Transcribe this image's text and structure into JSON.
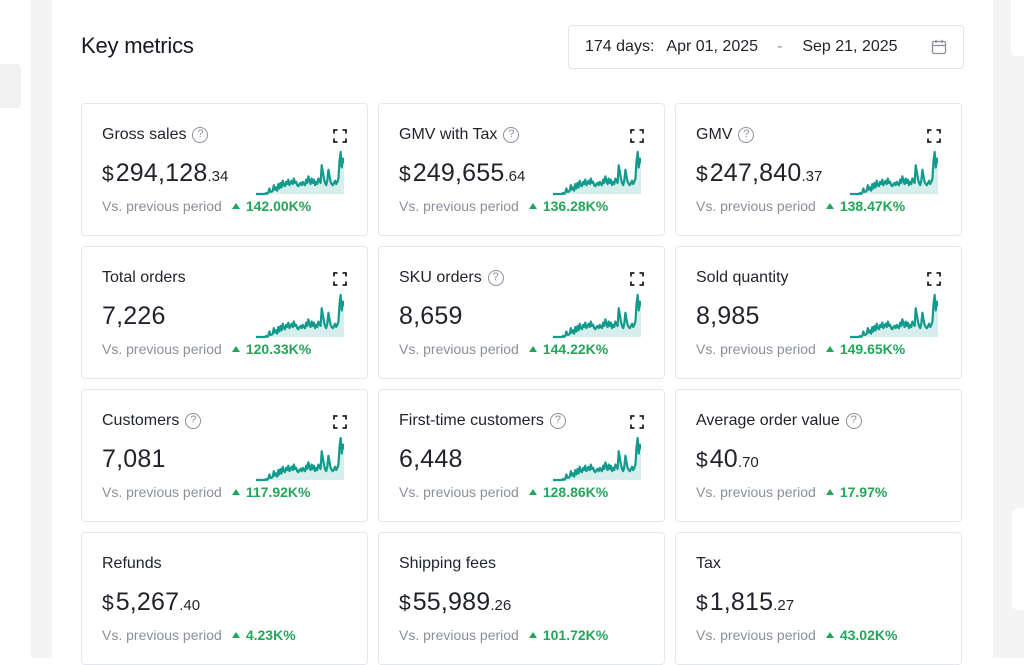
{
  "header": {
    "title": "Key metrics",
    "date_range": {
      "days_label": "174 days:",
      "start": "Apr 01, 2025",
      "separator": "-",
      "end": "Sep 21, 2025",
      "icon": "calendar-icon"
    }
  },
  "colors": {
    "accent_green": "#23a55a",
    "sparkline": "#129a8c",
    "sparkline_fill": "#d6efec"
  },
  "metrics": [
    {
      "label": "Gross sales",
      "help": true,
      "expandable": true,
      "currency": "$",
      "int": "294,128",
      "dec": ".34",
      "compare_label": "Vs. previous period",
      "change": "142.00K%",
      "trend": "up",
      "sparkline": true
    },
    {
      "label": "GMV with Tax",
      "help": true,
      "expandable": true,
      "currency": "$",
      "int": "249,655",
      "dec": ".64",
      "compare_label": "Vs. previous period",
      "change": "136.28K%",
      "trend": "up",
      "sparkline": true
    },
    {
      "label": "GMV",
      "help": true,
      "expandable": true,
      "currency": "$",
      "int": "247,840",
      "dec": ".37",
      "compare_label": "Vs. previous period",
      "change": "138.47K%",
      "trend": "up",
      "sparkline": true
    },
    {
      "label": "Total orders",
      "help": false,
      "expandable": true,
      "currency": "",
      "int": "7,226",
      "dec": "",
      "compare_label": "Vs. previous period",
      "change": "120.33K%",
      "trend": "up",
      "sparkline": true
    },
    {
      "label": "SKU orders",
      "help": true,
      "expandable": true,
      "currency": "",
      "int": "8,659",
      "dec": "",
      "compare_label": "Vs. previous period",
      "change": "144.22K%",
      "trend": "up",
      "sparkline": true
    },
    {
      "label": "Sold quantity",
      "help": false,
      "expandable": true,
      "currency": "",
      "int": "8,985",
      "dec": "",
      "compare_label": "Vs. previous period",
      "change": "149.65K%",
      "trend": "up",
      "sparkline": true
    },
    {
      "label": "Customers",
      "help": true,
      "expandable": true,
      "currency": "",
      "int": "7,081",
      "dec": "",
      "compare_label": "Vs. previous period",
      "change": "117.92K%",
      "trend": "up",
      "sparkline": true
    },
    {
      "label": "First-time customers",
      "help": true,
      "expandable": true,
      "currency": "",
      "int": "6,448",
      "dec": "",
      "compare_label": "Vs. previous period",
      "change": "128.86K%",
      "trend": "up",
      "sparkline": true
    },
    {
      "label": "Average order value",
      "help": true,
      "expandable": false,
      "currency": "$",
      "int": "40",
      "dec": ".70",
      "compare_label": "Vs. previous period",
      "change": "17.97%",
      "trend": "up",
      "sparkline": false
    },
    {
      "label": "Refunds",
      "help": false,
      "expandable": false,
      "currency": "$",
      "int": "5,267",
      "dec": ".40",
      "compare_label": "Vs. previous period",
      "change": "4.23K%",
      "trend": "up",
      "sparkline": false
    },
    {
      "label": "Shipping fees",
      "help": false,
      "expandable": false,
      "currency": "$",
      "int": "55,989",
      "dec": ".26",
      "compare_label": "Vs. previous period",
      "change": "101.72K%",
      "trend": "up",
      "sparkline": false
    },
    {
      "label": "Tax",
      "help": false,
      "expandable": false,
      "currency": "$",
      "int": "1,815",
      "dec": ".27",
      "compare_label": "Vs. previous period",
      "change": "43.02K%",
      "trend": "up",
      "sparkline": false
    }
  ],
  "sparkline_shape": [
    0,
    0,
    0,
    0,
    0,
    0,
    0,
    0,
    0,
    1,
    0,
    1,
    5,
    2,
    2,
    3,
    8,
    4,
    6,
    3,
    9,
    5,
    10,
    6,
    12,
    8,
    7,
    11,
    9,
    13,
    8,
    10,
    12,
    9,
    14,
    10,
    11,
    8,
    7,
    9,
    10,
    8,
    11,
    9,
    8,
    13,
    10,
    16,
    12,
    9,
    14,
    10,
    13,
    8,
    11,
    9,
    14,
    12,
    10,
    26,
    20,
    14,
    10,
    8,
    12,
    22,
    16,
    11,
    9,
    8,
    10,
    12,
    9,
    11,
    14,
    30,
    38,
    24,
    32,
    28
  ],
  "help_glyph": "?"
}
